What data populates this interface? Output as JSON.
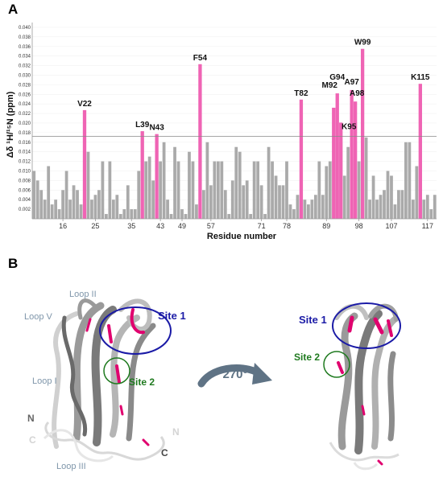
{
  "panels": {
    "a_label": "A",
    "b_label": "B"
  },
  "chart_data": {
    "type": "bar",
    "xlabel": "Residue number",
    "ylabel": "Δδ ¹H/¹⁵N (ppm)",
    "ylim": [
      0,
      0.041
    ],
    "yticks": [
      "0.002",
      "0.004",
      "0.006",
      "0.008",
      "0.010",
      "0.012",
      "0.014",
      "0.016",
      "0.018",
      "0.020",
      "0.022",
      "0.024",
      "0.026",
      "0.028",
      "0.030",
      "0.032",
      "0.034",
      "0.036",
      "0.038",
      "0.040"
    ],
    "xticks": [
      16,
      25,
      35,
      43,
      49,
      57,
      71,
      78,
      89,
      98,
      107,
      117
    ],
    "x_first": 8,
    "x_last": 119,
    "threshold": 0.0172,
    "values": [
      0.01,
      0.008,
      0.006,
      0.004,
      0.011,
      0.003,
      0.004,
      0.002,
      0.006,
      0.01,
      0.004,
      0.007,
      0.006,
      0.003,
      0.015,
      0.014,
      0.004,
      0.005,
      0.006,
      0.012,
      0.001,
      0.012,
      0.004,
      0.005,
      0.001,
      0.002,
      0.007,
      0.002,
      0.002,
      0.01,
      0.002,
      0.012,
      0.013,
      0.008,
      0.008,
      0.012,
      0.016,
      0.004,
      0.001,
      0.015,
      0.012,
      0.002,
      0.001,
      0.014,
      0.012,
      0.003,
      0.004,
      0.006,
      0.016,
      0.007,
      0.012,
      0.012,
      0.012,
      0.006,
      0.001,
      0.008,
      0.015,
      0.014,
      0.007,
      0.008,
      0.001,
      0.012,
      0.012,
      0.007,
      0.001,
      0.015,
      0.012,
      0.009,
      0.007,
      0.007,
      0.012,
      0.003,
      0.002,
      0.005,
      0.001,
      0.004,
      0.003,
      0.004,
      0.005,
      0.012,
      0.005,
      0.011,
      0.012,
      0.017,
      0.006,
      0.016,
      0.009,
      0.015,
      0.013,
      0.016,
      0.012,
      0.006,
      0.017,
      0.004,
      0.009,
      0.004,
      0.005,
      0.006,
      0.01,
      0.009,
      0.003,
      0.006,
      0.006,
      0.016,
      0.016,
      0.004,
      0.011,
      0.008,
      0.004,
      0.005,
      0.002,
      0.005
    ],
    "highlights": [
      {
        "label": "V22",
        "residue": 22,
        "value": 0.0227
      },
      {
        "label": "L39",
        "residue": 38,
        "value": 0.0183
      },
      {
        "label": "N43",
        "residue": 42,
        "value": 0.0177
      },
      {
        "label": "F54",
        "residue": 54,
        "value": 0.0323
      },
      {
        "label": "T82",
        "residue": 82,
        "value": 0.0249
      },
      {
        "label": "M92",
        "residue": 91,
        "value": 0.0232
      },
      {
        "label": "G94",
        "residue": 92,
        "value": 0.0262
      },
      {
        "label": "K95",
        "residue": 93,
        "value": 0.0201
      },
      {
        "label": "A97",
        "residue": 96,
        "value": 0.0269
      },
      {
        "label": "A98",
        "residue": 97,
        "value": 0.0245
      },
      {
        "label": "W99",
        "residue": 99,
        "value": 0.0355
      },
      {
        "label": "K115",
        "residue": 115,
        "value": 0.0282
      }
    ],
    "colors": {
      "bar": "#aaaaaa",
      "highlight": "#ef64b4",
      "threshold": "#888888"
    }
  },
  "structure": {
    "loop_labels": [
      "Loop II",
      "Loop V",
      "Loop I",
      "Loop III"
    ],
    "site1": "Site 1",
    "site2": "Site 2",
    "terminus_n": "N",
    "terminus_c": "C",
    "rotation": "270°",
    "colors": {
      "site1": "#1a1aa6",
      "site2": "#1f7a1f",
      "ribbon": "#808080",
      "ribbon_light": "#c8c8c8",
      "hotspot": "#e0006e",
      "arrow": "#5f7385"
    }
  }
}
